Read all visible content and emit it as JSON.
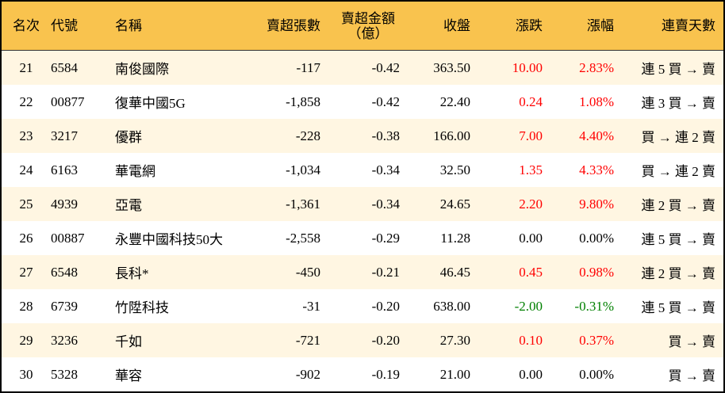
{
  "colors": {
    "header_bg": "#F9C34E",
    "odd_row_bg": "#FFF6E2",
    "up": "#FF0000",
    "down": "#008000"
  },
  "headers": [
    "名次",
    "代號",
    "名稱",
    "賣超張數",
    "賣超金額",
    "（億）",
    "收盤",
    "漲跌",
    "漲幅",
    "連賣天數"
  ],
  "rows": [
    {
      "rank": "21",
      "code": "6584",
      "name": "南俊國際",
      "shares": "-117",
      "amount": "-0.42",
      "close": "363.50",
      "change": "10.00",
      "pct": "2.83%",
      "trend": "up",
      "streak": "連 5 買 → 賣"
    },
    {
      "rank": "22",
      "code": "00877",
      "name": "復華中國5G",
      "shares": "-1,858",
      "amount": "-0.42",
      "close": "22.40",
      "change": "0.24",
      "pct": "1.08%",
      "trend": "up",
      "streak": "連 3 買 → 賣"
    },
    {
      "rank": "23",
      "code": "3217",
      "name": "優群",
      "shares": "-228",
      "amount": "-0.38",
      "close": "166.00",
      "change": "7.00",
      "pct": "4.40%",
      "trend": "up",
      "streak": "買 → 連 2 賣"
    },
    {
      "rank": "24",
      "code": "6163",
      "name": "華電網",
      "shares": "-1,034",
      "amount": "-0.34",
      "close": "32.50",
      "change": "1.35",
      "pct": "4.33%",
      "trend": "up",
      "streak": "買 → 連 2 賣"
    },
    {
      "rank": "25",
      "code": "4939",
      "name": "亞電",
      "shares": "-1,361",
      "amount": "-0.34",
      "close": "24.65",
      "change": "2.20",
      "pct": "9.80%",
      "trend": "up",
      "streak": "連 2 買 → 賣"
    },
    {
      "rank": "26",
      "code": "00887",
      "name": "永豐中國科技50大",
      "shares": "-2,558",
      "amount": "-0.29",
      "close": "11.28",
      "change": "0.00",
      "pct": "0.00%",
      "trend": "flat",
      "streak": "連 5 買 → 賣"
    },
    {
      "rank": "27",
      "code": "6548",
      "name": "長科*",
      "shares": "-450",
      "amount": "-0.21",
      "close": "46.45",
      "change": "0.45",
      "pct": "0.98%",
      "trend": "up",
      "streak": "連 2 買 → 賣"
    },
    {
      "rank": "28",
      "code": "6739",
      "name": "竹陞科技",
      "shares": "-31",
      "amount": "-0.20",
      "close": "638.00",
      "change": "-2.00",
      "pct": "-0.31%",
      "trend": "down",
      "streak": "連 5 買 → 賣"
    },
    {
      "rank": "29",
      "code": "3236",
      "name": "千如",
      "shares": "-721",
      "amount": "-0.20",
      "close": "27.30",
      "change": "0.10",
      "pct": "0.37%",
      "trend": "up",
      "streak": "買 → 賣"
    },
    {
      "rank": "30",
      "code": "5328",
      "name": "華容",
      "shares": "-902",
      "amount": "-0.19",
      "close": "21.00",
      "change": "0.00",
      "pct": "0.00%",
      "trend": "flat",
      "streak": "買 → 賣"
    }
  ]
}
